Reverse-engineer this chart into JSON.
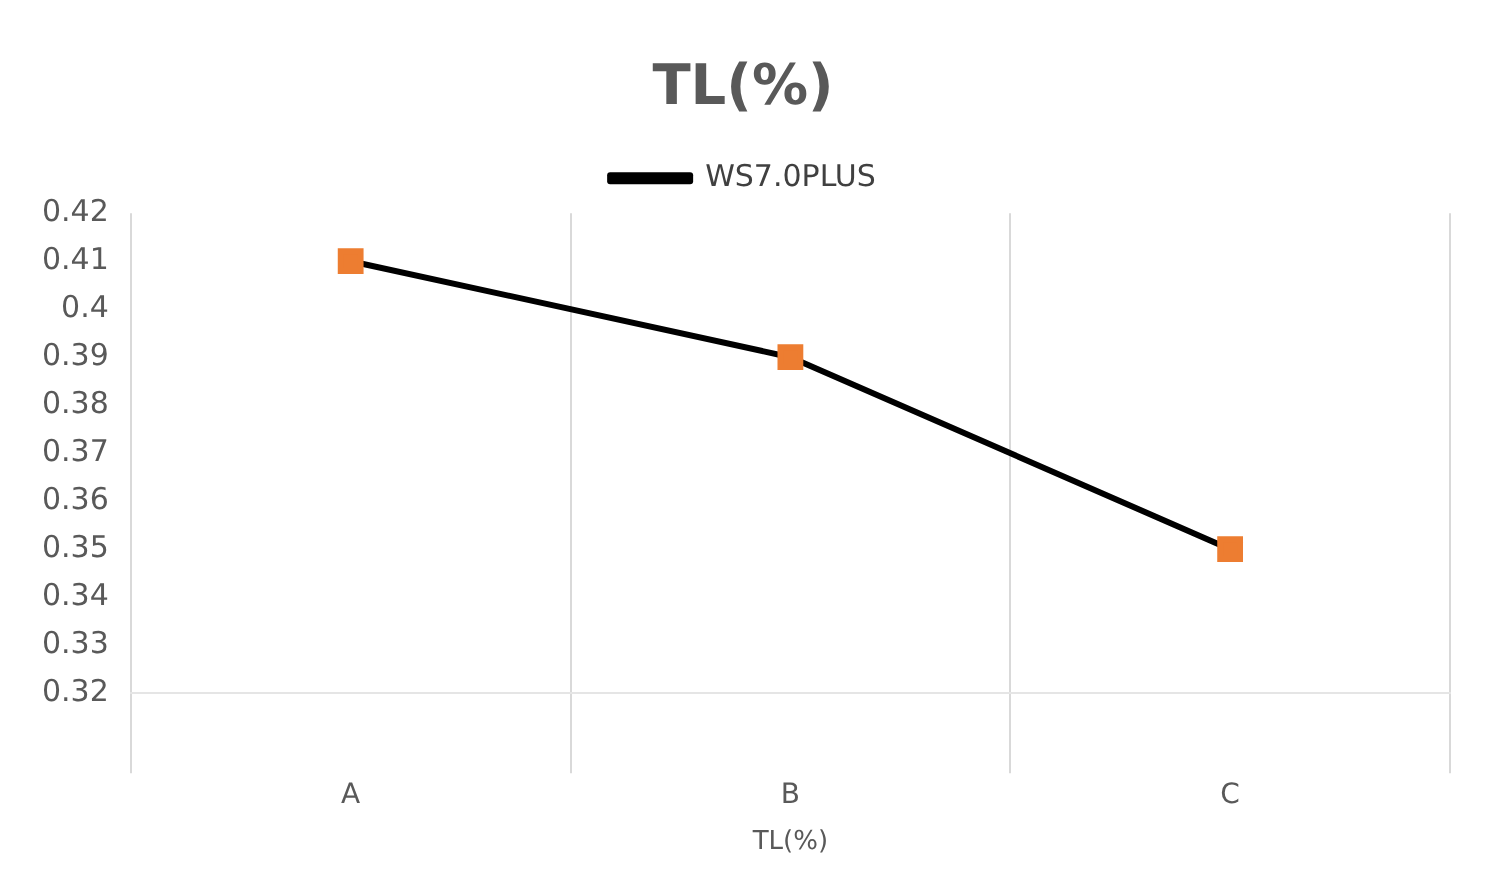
{
  "chart_data": {
    "type": "line",
    "title": "TL(%)",
    "xlabel": "TL(%)",
    "categories": [
      "A",
      "B",
      "C"
    ],
    "series": [
      {
        "name": "WS7.0PLUS",
        "color": "#ed7d31",
        "values": [
          0.41,
          0.39,
          0.35
        ]
      }
    ],
    "ylim": [
      0.32,
      0.42
    ],
    "yticks": [
      0.32,
      0.33,
      0.34,
      0.35,
      0.36,
      0.37,
      0.38,
      0.39,
      0.4,
      0.41,
      0.42
    ],
    "grid": "x",
    "legend": "top",
    "marker": "square",
    "line_style": "solid"
  }
}
